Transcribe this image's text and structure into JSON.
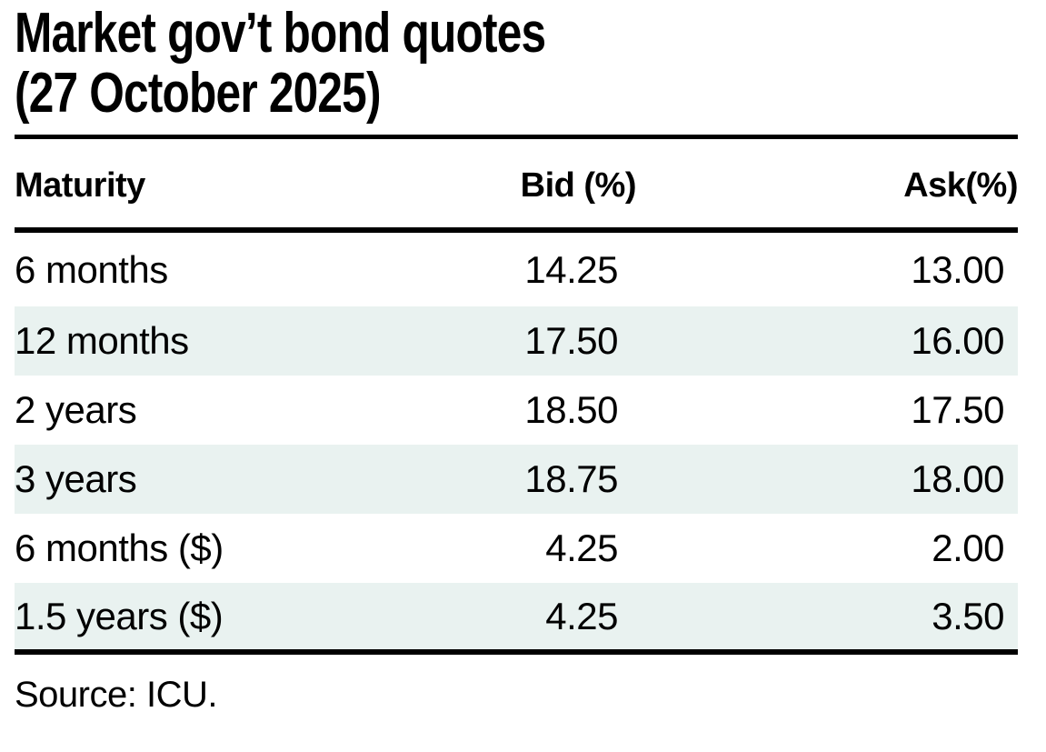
{
  "title": {
    "line1": "Market gov’t bond quotes",
    "line2": "(27 October 2025)"
  },
  "table": {
    "columns": [
      "Maturity",
      "Bid (%)",
      "Ask(%)"
    ],
    "rows": [
      {
        "maturity": "6 months",
        "bid": "14.25",
        "ask": "13.00"
      },
      {
        "maturity": "12 months",
        "bid": "17.50",
        "ask": "16.00"
      },
      {
        "maturity": "2 years",
        "bid": "18.50",
        "ask": "17.50"
      },
      {
        "maturity": "3 years",
        "bid": "18.75",
        "ask": "18.00"
      },
      {
        "maturity": "6 months ($)",
        "bid": "4.25",
        "ask": "2.00"
      },
      {
        "maturity": "1.5 years ($)",
        "bid": "4.25",
        "ask": "3.50"
      }
    ]
  },
  "source": "Source: ICU.",
  "colors": {
    "stripe": "#e9f2f0",
    "text": "#000000",
    "rule": "#000000",
    "background": "#ffffff"
  },
  "chart_data": {
    "type": "table",
    "title": "Market gov’t bond quotes (27 October 2025)",
    "columns": [
      "Maturity",
      "Bid (%)",
      "Ask(%)"
    ],
    "rows": [
      [
        "6 months",
        14.25,
        13.0
      ],
      [
        "12 months",
        17.5,
        16.0
      ],
      [
        "2 years",
        18.5,
        17.5
      ],
      [
        "3 years",
        18.75,
        18.0
      ],
      [
        "6 months ($)",
        4.25,
        2.0
      ],
      [
        "1.5 years ($)",
        4.25,
        3.5
      ]
    ],
    "notes": "Striped rows (12 months, 3 years, 1.5 years ($)) have a light mint background; thick black rules under title, under header row, and below last row.",
    "source": "Source: ICU."
  }
}
